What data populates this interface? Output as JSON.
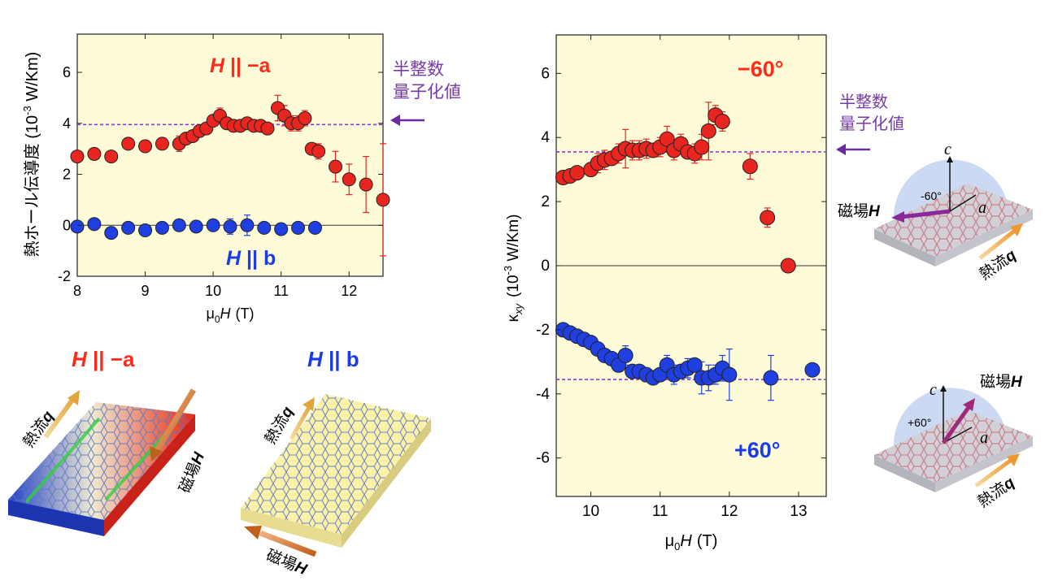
{
  "chart_data": [
    {
      "type": "scatter",
      "xlabel": "μ0H (T)",
      "xlabel_main": "μ",
      "xlabel_sub": "0",
      "xlabel_var": "H",
      "xlabel_unit": "(T)",
      "ylabel": "熱ホール伝導度 (10-3 W/Km)",
      "ylabel_main": "熱ホール伝導度 (10",
      "ylabel_sup": "-3",
      "ylabel_unit": " W/Km)",
      "xlim": [
        8,
        12.5
      ],
      "ylim": [
        -2,
        7.5
      ],
      "xticks": [
        "8",
        "9",
        "10",
        "11",
        "12"
      ],
      "yticks": [
        "-2",
        "0",
        "2",
        "4",
        "6"
      ],
      "quantization_value": 3.95,
      "annotation": [
        "半整数",
        "量子化値"
      ],
      "series": [
        {
          "name": "H || −a",
          "name_var": "H",
          "name_rest": " || −a",
          "color": "#e8251f",
          "label_color": "#ff2a1a",
          "x": [
            8.0,
            8.25,
            8.5,
            8.75,
            9.0,
            9.25,
            9.5,
            9.6,
            9.7,
            9.8,
            9.9,
            10.0,
            10.1,
            10.2,
            10.3,
            10.4,
            10.5,
            10.6,
            10.7,
            10.8,
            10.95,
            11.05,
            11.15,
            11.25,
            11.35,
            11.45,
            11.55,
            11.8,
            12.0,
            12.25,
            12.5
          ],
          "y": [
            2.7,
            2.8,
            2.7,
            3.2,
            3.1,
            3.2,
            3.2,
            3.4,
            3.5,
            3.7,
            3.8,
            4.1,
            4.3,
            4.0,
            3.9,
            3.9,
            4.0,
            3.9,
            3.9,
            3.8,
            4.6,
            4.3,
            4.0,
            4.0,
            4.2,
            3.0,
            2.9,
            2.3,
            1.8,
            1.6,
            1.0
          ],
          "yerr": [
            0,
            0,
            0,
            0,
            0,
            0,
            0.3,
            0,
            0,
            0,
            0,
            0.2,
            0.3,
            0.2,
            0.2,
            0,
            0.2,
            0,
            0.2,
            0.2,
            0.5,
            0.4,
            0.3,
            0.3,
            0.3,
            0.2,
            0.3,
            0.6,
            0.6,
            1.1,
            2.2
          ]
        },
        {
          "name": "H || b",
          "name_var": "H",
          "name_rest": " || b",
          "color": "#1f3fe0",
          "label_color": "#1a3ce8",
          "x": [
            8.0,
            8.25,
            8.5,
            8.75,
            9.0,
            9.25,
            9.5,
            9.75,
            10.0,
            10.25,
            10.5,
            10.75,
            11.0,
            11.25,
            11.5
          ],
          "y": [
            -0.05,
            0.05,
            -0.3,
            -0.1,
            -0.2,
            -0.1,
            0.0,
            -0.05,
            0.0,
            -0.05,
            0.0,
            -0.1,
            -0.15,
            -0.1,
            -0.1
          ],
          "yerr": [
            0,
            0,
            0,
            0,
            0,
            0,
            0,
            0,
            0.1,
            0.3,
            0.4,
            0.1,
            0.1,
            0.1,
            0.1
          ]
        }
      ]
    },
    {
      "type": "scatter",
      "xlabel": "μ0H (T)",
      "xlabel_main": "μ",
      "xlabel_sub": "0",
      "xlabel_var": "H",
      "xlabel_unit": "(T)",
      "ylabel": "κxy (10-3 W/Km)",
      "ylabel_kappa": "κ",
      "ylabel_sub": "xy",
      "ylabel_paren": "(10",
      "ylabel_sup": "-3",
      "ylabel_unit": " W/Km)",
      "xlim": [
        9.5,
        13.4
      ],
      "ylim": [
        -7.2,
        7.2
      ],
      "xticks": [
        "10",
        "11",
        "12",
        "13"
      ],
      "yticks": [
        "-6",
        "-4",
        "-2",
        "0",
        "2",
        "4",
        "6"
      ],
      "quantization_values": [
        3.55,
        -3.55
      ],
      "annotation": [
        "半整数",
        "量子化値"
      ],
      "series": [
        {
          "name": "−60°",
          "color": "#e8251f",
          "label_color": "#ff2a1a",
          "x": [
            9.6,
            9.7,
            9.8,
            10.0,
            10.1,
            10.2,
            10.3,
            10.4,
            10.5,
            10.6,
            10.7,
            10.8,
            10.9,
            11.0,
            11.1,
            11.2,
            11.3,
            11.4,
            11.5,
            11.6,
            11.7,
            11.8,
            11.9,
            12.3,
            12.55,
            12.85
          ],
          "y": [
            2.75,
            2.8,
            2.9,
            3.0,
            3.2,
            3.3,
            3.35,
            3.5,
            3.65,
            3.6,
            3.6,
            3.65,
            3.6,
            3.7,
            3.95,
            3.6,
            3.8,
            3.55,
            3.5,
            3.7,
            4.2,
            4.7,
            4.5,
            3.1,
            1.5,
            0.0
          ],
          "yerr": [
            0,
            0,
            0,
            0.2,
            0.3,
            0.3,
            0.2,
            0.3,
            0.6,
            0.3,
            0.3,
            0.3,
            0.2,
            0.3,
            0.4,
            0.3,
            0.3,
            0.2,
            0.3,
            0.4,
            0.9,
            0.3,
            0.3,
            0.4,
            0.3,
            0.0
          ]
        },
        {
          "name": "+60°",
          "color": "#1f3fe0",
          "label_color": "#1a3ce8",
          "x": [
            9.6,
            9.7,
            9.8,
            9.9,
            10.0,
            10.1,
            10.2,
            10.3,
            10.4,
            10.5,
            10.6,
            10.7,
            10.8,
            10.9,
            11.0,
            11.1,
            11.2,
            11.3,
            11.4,
            11.5,
            11.6,
            11.7,
            11.8,
            11.9,
            12.0,
            12.6,
            13.2
          ],
          "y": [
            -2.0,
            -2.1,
            -2.2,
            -2.3,
            -2.4,
            -2.6,
            -2.8,
            -2.9,
            -3.1,
            -2.8,
            -3.3,
            -3.3,
            -3.4,
            -3.5,
            -3.4,
            -3.1,
            -3.4,
            -3.3,
            -3.2,
            -3.1,
            -3.5,
            -3.5,
            -3.4,
            -3.2,
            -3.4,
            -3.5,
            -3.25
          ],
          "yerr": [
            0,
            0,
            0,
            0,
            0.2,
            0.2,
            0.2,
            0.2,
            0.2,
            0.3,
            0.2,
            0.2,
            0.2,
            0.2,
            0.2,
            0.3,
            0.3,
            0.2,
            0.3,
            0.2,
            0.5,
            0.4,
            0.3,
            0.4,
            0.8,
            0.7,
            0.2
          ]
        }
      ]
    }
  ],
  "illustrations": {
    "neg_a": {
      "title_var": "H",
      "title_rest": " || −a",
      "heat": "熱流",
      "heat_var": "q",
      "field": "磁場",
      "field_var": "H"
    },
    "b": {
      "title_var": "H",
      "title_rest": " || b",
      "heat": "熱流",
      "heat_var": "q",
      "field": "磁場",
      "field_var": "H"
    },
    "m60": {
      "field": "磁場",
      "field_var": "H",
      "angle": "-60°",
      "c": "c",
      "a": "a",
      "heat": "熱流",
      "heat_var": "q"
    },
    "p60": {
      "field": "磁場",
      "field_var": "H",
      "angle": "+60°",
      "c": "c",
      "a": "a",
      "heat": "熱流",
      "heat_var": "q"
    }
  }
}
